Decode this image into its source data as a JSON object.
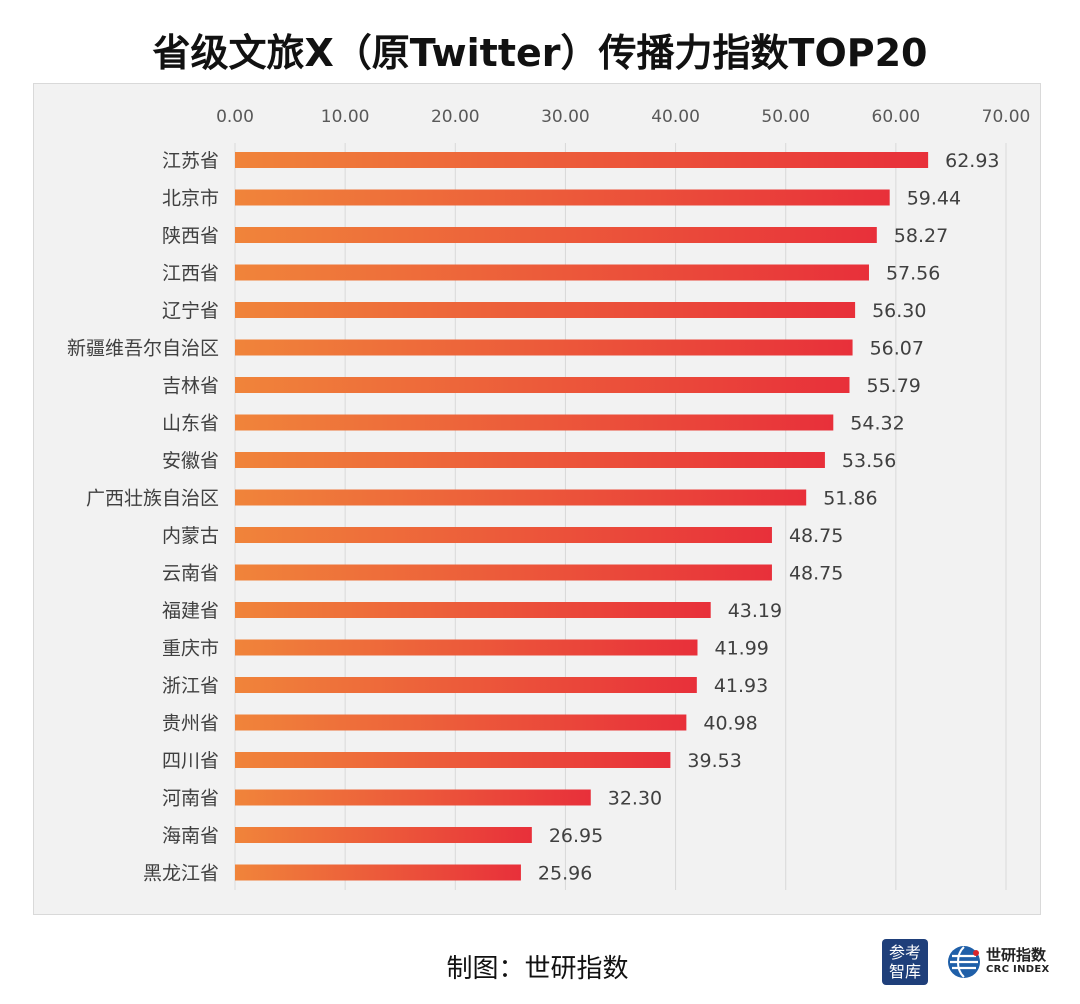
{
  "title": "省级文旅X（原Twitter）传播力指数TOP20",
  "source_text": "制图：世研指数",
  "logos": {
    "canku_line1": "参考",
    "canku_line2": "智库",
    "crc_cn": "世研指数",
    "crc_en": "CRC INDEX"
  },
  "colors": {
    "bar_start": "#f0843a",
    "bar_end": "#e8303a",
    "plot_background": "#f2f2f2",
    "grid": "#d9d9d9",
    "logo_blue": "#1f3f7a"
  },
  "chart_data": {
    "type": "bar",
    "orientation": "horizontal",
    "title": "省级文旅X（原Twitter）传播力指数TOP20",
    "xlabel": "",
    "ylabel": "",
    "xlim": [
      0,
      70
    ],
    "x_ticks": [
      "0.00",
      "10.00",
      "20.00",
      "30.00",
      "40.00",
      "50.00",
      "60.00",
      "70.00"
    ],
    "x_axis_position": "top",
    "grid": true,
    "legend": "none",
    "categories": [
      "江苏省",
      "北京市",
      "陕西省",
      "江西省",
      "辽宁省",
      "新疆维吾尔自治区",
      "吉林省",
      "山东省",
      "安徽省",
      "广西壮族自治区",
      "内蒙古",
      "云南省",
      "福建省",
      "重庆市",
      "浙江省",
      "贵州省",
      "四川省",
      "河南省",
      "海南省",
      "黑龙江省"
    ],
    "values": [
      62.93,
      59.44,
      58.27,
      57.56,
      56.3,
      56.07,
      55.79,
      54.32,
      53.56,
      51.86,
      48.75,
      48.75,
      43.19,
      41.99,
      41.93,
      40.98,
      39.53,
      32.3,
      26.95,
      25.96
    ],
    "value_labels": [
      "62.93",
      "59.44",
      "58.27",
      "57.56",
      "56.30",
      "56.07",
      "55.79",
      "54.32",
      "53.56",
      "51.86",
      "48.75",
      "48.75",
      "43.19",
      "41.99",
      "41.93",
      "40.98",
      "39.53",
      "32.30",
      "26.95",
      "25.96"
    ]
  }
}
